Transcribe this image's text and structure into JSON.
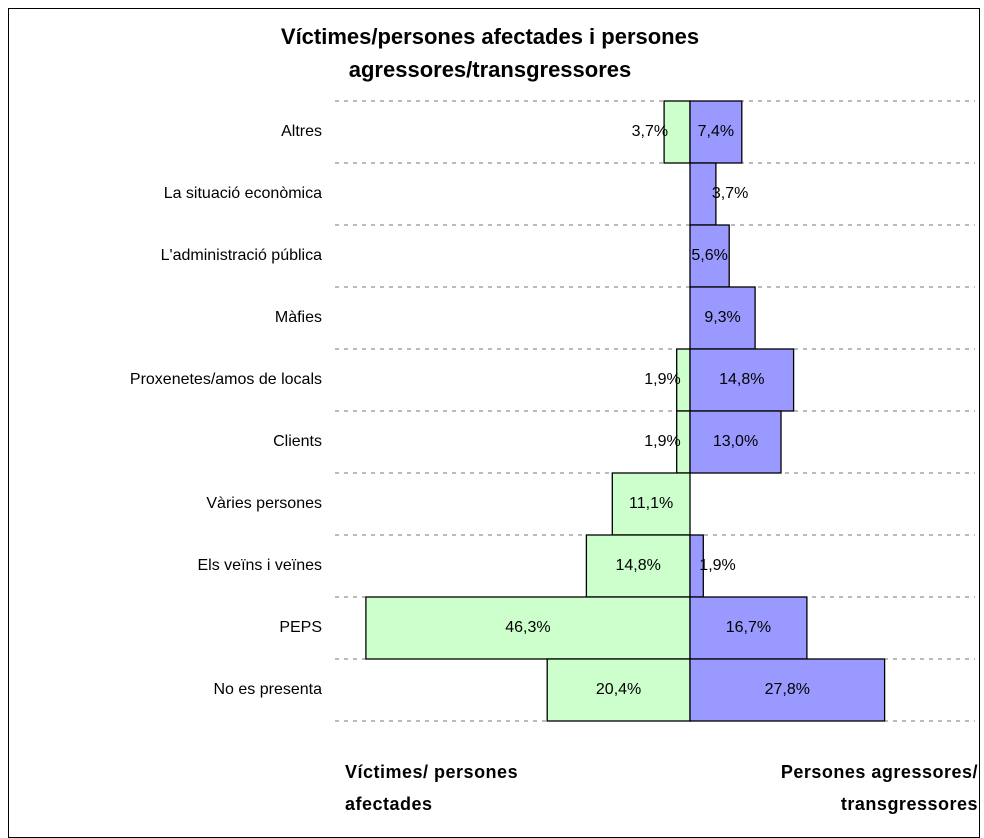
{
  "chart_data": {
    "type": "butterfly-bar",
    "title": "Víctimes/persones afectades i persones agressores/transgressores",
    "categories": [
      "Altres",
      "La situació econòmica",
      "L'administració pública",
      "Màfies",
      "Proxenetes/amos de locals",
      "Clients",
      "Vàries persones",
      "Els veïns i veïnes",
      "PEPS",
      "No es presenta"
    ],
    "series": [
      {
        "name": "Víctimes/ persones afectades",
        "color": "#ccffcc",
        "side": "left",
        "values": [
          3.7,
          null,
          null,
          null,
          1.9,
          1.9,
          11.1,
          14.8,
          46.3,
          20.4
        ],
        "value_labels": [
          "3,7%",
          null,
          null,
          null,
          "1,9%",
          "1,9%",
          "11,1%",
          "14,8%",
          "46,3%",
          "20,4%"
        ]
      },
      {
        "name": "Persones agressores/ transgressores",
        "color": "#9999ff",
        "side": "right",
        "values": [
          7.4,
          3.7,
          5.6,
          9.3,
          14.8,
          13.0,
          null,
          1.9,
          16.7,
          27.8
        ],
        "value_labels": [
          "7,4%",
          "3,7%",
          "5,6%",
          "9,3%",
          "14,8%",
          "13,0%",
          null,
          "1,9%",
          "16,7%",
          "27,8%"
        ]
      }
    ],
    "grid": true
  }
}
